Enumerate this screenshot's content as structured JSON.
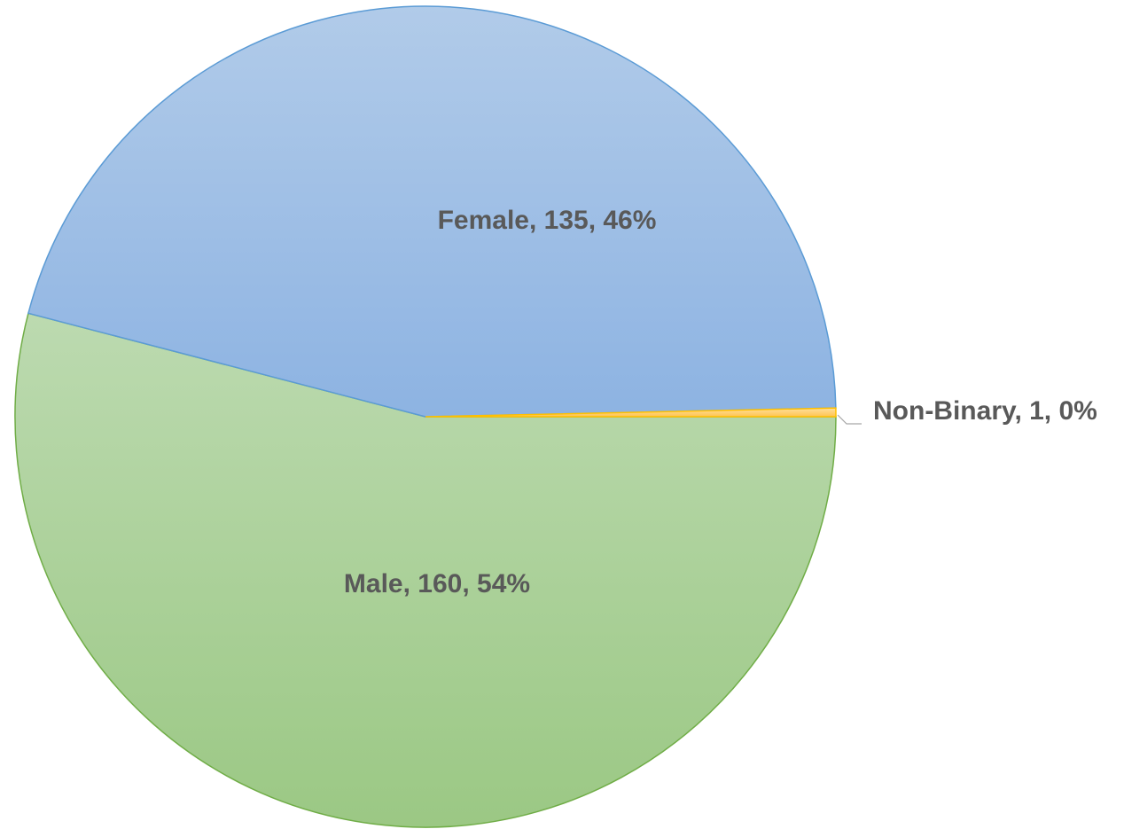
{
  "chart_data": {
    "type": "pie",
    "values": [
      160,
      135,
      1
    ],
    "value_labels": [
      "Male, 160, 54%",
      "Female, 135, 46%",
      "Non-Binary, 1, 0%"
    ],
    "colors": [
      "#a9d08e",
      "#9dbde6",
      "#ffd27f"
    ]
  }
}
